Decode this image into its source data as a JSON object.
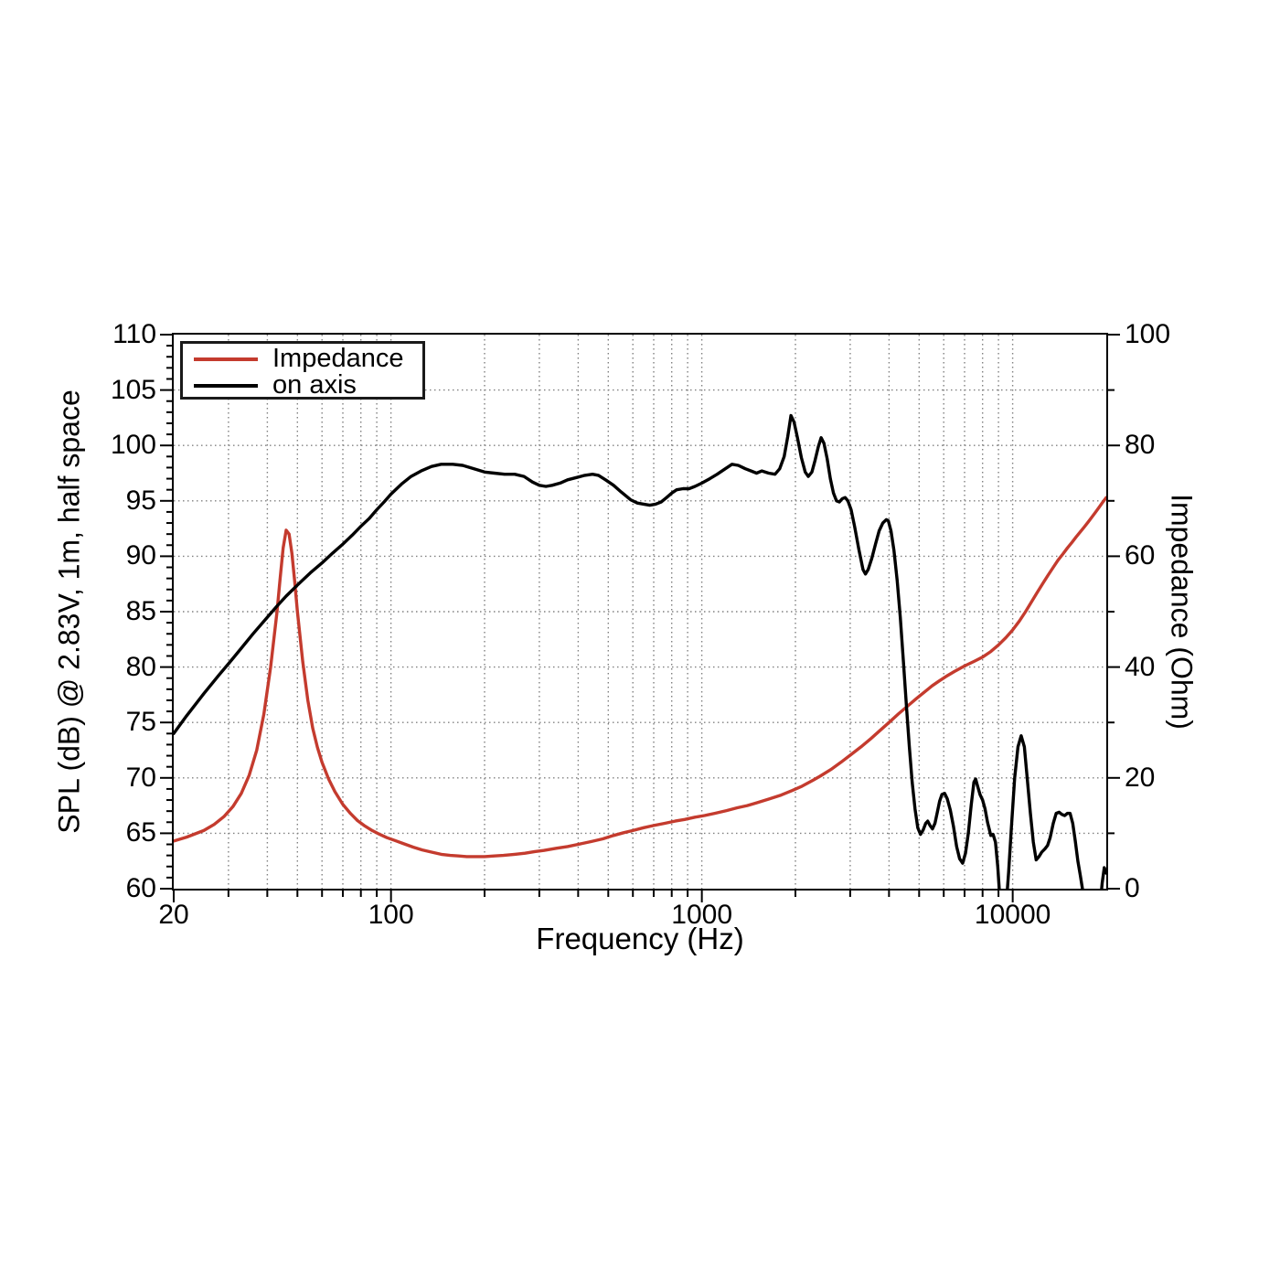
{
  "chart_data": {
    "type": "line",
    "title": "",
    "xlabel": "Frequency (Hz)",
    "ylabel_left": "SPL (dB) @ 2.83V, 1m, half space",
    "ylabel_right": "Impedance (Ohm)",
    "x_scale": "log",
    "x_range": [
      20,
      20000
    ],
    "x_major_ticks": [
      20,
      100,
      1000,
      10000
    ],
    "x_tick_labels": [
      "20",
      "100",
      "1000",
      "10000"
    ],
    "y_left_range": [
      60,
      110
    ],
    "y_left_ticks": [
      60,
      65,
      70,
      75,
      80,
      85,
      90,
      95,
      100,
      105,
      110
    ],
    "y_left_minor_step": 1,
    "y_left_gridlines": [
      65,
      70,
      75,
      80,
      85,
      90,
      95,
      100,
      105
    ],
    "y_right_range": [
      0,
      100
    ],
    "y_right_ticks": [
      0,
      20,
      40,
      60,
      80,
      100
    ],
    "y_right_minor_step": 10,
    "grid_style": "dotted",
    "grid_color": "#808080",
    "axis_color": "#000000",
    "legend": {
      "position": "top-left",
      "entries": [
        {
          "label": "Impedance",
          "color": "#c43b2e"
        },
        {
          "label": "on axis",
          "color": "#000000"
        }
      ]
    },
    "series": [
      {
        "name": "Impedance",
        "axis": "right",
        "unit": "Ohm",
        "color": "#c43b2e",
        "points": [
          [
            20,
            8.6
          ],
          [
            22,
            9.3
          ],
          [
            25,
            10.5
          ],
          [
            27,
            11.6
          ],
          [
            29,
            13.0
          ],
          [
            31,
            14.8
          ],
          [
            33,
            17.2
          ],
          [
            35,
            20.5
          ],
          [
            37,
            25.0
          ],
          [
            39,
            31.5
          ],
          [
            41,
            40.0
          ],
          [
            43,
            50.0
          ],
          [
            44,
            56.0
          ],
          [
            45,
            61.5
          ],
          [
            46,
            64.7
          ],
          [
            47,
            64.0
          ],
          [
            48,
            60.5
          ],
          [
            49,
            55.5
          ],
          [
            50,
            50.0
          ],
          [
            52,
            41.0
          ],
          [
            54,
            34.0
          ],
          [
            56,
            29.0
          ],
          [
            58,
            25.5
          ],
          [
            60,
            22.8
          ],
          [
            63,
            19.8
          ],
          [
            66,
            17.5
          ],
          [
            70,
            15.2
          ],
          [
            74,
            13.6
          ],
          [
            78,
            12.3
          ],
          [
            82,
            11.4
          ],
          [
            87,
            10.5
          ],
          [
            92,
            9.8
          ],
          [
            97,
            9.2
          ],
          [
            103,
            8.7
          ],
          [
            110,
            8.1
          ],
          [
            118,
            7.5
          ],
          [
            126,
            7.0
          ],
          [
            135,
            6.6
          ],
          [
            145,
            6.2
          ],
          [
            155,
            6.0
          ],
          [
            165,
            5.9
          ],
          [
            175,
            5.8
          ],
          [
            185,
            5.8
          ],
          [
            200,
            5.8
          ],
          [
            215,
            5.9
          ],
          [
            230,
            6.0
          ],
          [
            250,
            6.2
          ],
          [
            270,
            6.4
          ],
          [
            290,
            6.7
          ],
          [
            310,
            6.9
          ],
          [
            340,
            7.3
          ],
          [
            370,
            7.6
          ],
          [
            400,
            8.0
          ],
          [
            440,
            8.5
          ],
          [
            480,
            9.0
          ],
          [
            520,
            9.6
          ],
          [
            560,
            10.1
          ],
          [
            600,
            10.5
          ],
          [
            650,
            11.0
          ],
          [
            700,
            11.4
          ],
          [
            760,
            11.8
          ],
          [
            820,
            12.2
          ],
          [
            880,
            12.5
          ],
          [
            950,
            12.9
          ],
          [
            1020,
            13.2
          ],
          [
            1100,
            13.6
          ],
          [
            1200,
            14.1
          ],
          [
            1300,
            14.6
          ],
          [
            1400,
            15.0
          ],
          [
            1500,
            15.5
          ],
          [
            1650,
            16.2
          ],
          [
            1800,
            16.9
          ],
          [
            1950,
            17.7
          ],
          [
            2100,
            18.5
          ],
          [
            2250,
            19.4
          ],
          [
            2400,
            20.3
          ],
          [
            2600,
            21.5
          ],
          [
            2800,
            22.8
          ],
          [
            3000,
            24.1
          ],
          [
            3250,
            25.6
          ],
          [
            3500,
            27.1
          ],
          [
            3750,
            28.6
          ],
          [
            4000,
            30.0
          ],
          [
            4300,
            31.6
          ],
          [
            4600,
            33.0
          ],
          [
            4900,
            34.3
          ],
          [
            5200,
            35.5
          ],
          [
            5500,
            36.6
          ],
          [
            5800,
            37.5
          ],
          [
            6100,
            38.3
          ],
          [
            6500,
            39.2
          ],
          [
            7000,
            40.2
          ],
          [
            7500,
            41.0
          ],
          [
            8000,
            41.8
          ],
          [
            8500,
            42.8
          ],
          [
            9000,
            44.0
          ],
          [
            9500,
            45.3
          ],
          [
            10000,
            46.7
          ],
          [
            10500,
            48.3
          ],
          [
            11000,
            50.0
          ],
          [
            11500,
            51.8
          ],
          [
            12000,
            53.5
          ],
          [
            12500,
            55.1
          ],
          [
            13000,
            56.6
          ],
          [
            13500,
            58.0
          ],
          [
            14000,
            59.3
          ],
          [
            14500,
            60.4
          ],
          [
            15000,
            61.5
          ],
          [
            15500,
            62.5
          ],
          [
            16000,
            63.5
          ],
          [
            16500,
            64.4
          ],
          [
            17000,
            65.3
          ],
          [
            17500,
            66.2
          ],
          [
            18000,
            67.1
          ],
          [
            18500,
            68.0
          ],
          [
            19000,
            68.9
          ],
          [
            19500,
            69.8
          ],
          [
            20000,
            70.6
          ]
        ]
      },
      {
        "name": "on axis",
        "axis": "left",
        "unit": "dB",
        "color": "#000000",
        "points": [
          [
            20,
            74.0
          ],
          [
            22,
            75.6
          ],
          [
            25,
            77.6
          ],
          [
            28,
            79.3
          ],
          [
            30,
            80.3
          ],
          [
            33,
            81.7
          ],
          [
            36,
            83.0
          ],
          [
            40,
            84.5
          ],
          [
            43,
            85.5
          ],
          [
            46,
            86.4
          ],
          [
            50,
            87.4
          ],
          [
            55,
            88.5
          ],
          [
            60,
            89.4
          ],
          [
            65,
            90.3
          ],
          [
            70,
            91.1
          ],
          [
            75,
            91.9
          ],
          [
            80,
            92.7
          ],
          [
            85,
            93.4
          ],
          [
            90,
            94.2
          ],
          [
            95,
            94.9
          ],
          [
            100,
            95.6
          ],
          [
            108,
            96.5
          ],
          [
            116,
            97.2
          ],
          [
            125,
            97.7
          ],
          [
            135,
            98.1
          ],
          [
            145,
            98.3
          ],
          [
            158,
            98.3
          ],
          [
            170,
            98.2
          ],
          [
            185,
            97.9
          ],
          [
            200,
            97.6
          ],
          [
            215,
            97.5
          ],
          [
            232,
            97.4
          ],
          [
            250,
            97.4
          ],
          [
            268,
            97.2
          ],
          [
            285,
            96.7
          ],
          [
            300,
            96.4
          ],
          [
            315,
            96.3
          ],
          [
            330,
            96.4
          ],
          [
            350,
            96.6
          ],
          [
            370,
            96.9
          ],
          [
            395,
            97.1
          ],
          [
            420,
            97.3
          ],
          [
            445,
            97.4
          ],
          [
            465,
            97.3
          ],
          [
            490,
            96.9
          ],
          [
            520,
            96.4
          ],
          [
            550,
            95.8
          ],
          [
            590,
            95.1
          ],
          [
            620,
            94.8
          ],
          [
            650,
            94.7
          ],
          [
            680,
            94.6
          ],
          [
            710,
            94.7
          ],
          [
            740,
            94.9
          ],
          [
            770,
            95.3
          ],
          [
            800,
            95.7
          ],
          [
            830,
            96.0
          ],
          [
            870,
            96.1
          ],
          [
            910,
            96.1
          ],
          [
            950,
            96.3
          ],
          [
            1000,
            96.6
          ],
          [
            1060,
            97.0
          ],
          [
            1120,
            97.4
          ],
          [
            1190,
            97.9
          ],
          [
            1250,
            98.3
          ],
          [
            1310,
            98.2
          ],
          [
            1380,
            97.9
          ],
          [
            1440,
            97.7
          ],
          [
            1500,
            97.5
          ],
          [
            1560,
            97.7
          ],
          [
            1640,
            97.5
          ],
          [
            1720,
            97.4
          ],
          [
            1780,
            97.9
          ],
          [
            1840,
            99.0
          ],
          [
            1890,
            100.8
          ],
          [
            1935,
            102.7
          ],
          [
            1980,
            102.1
          ],
          [
            2030,
            100.7
          ],
          [
            2090,
            98.9
          ],
          [
            2150,
            97.6
          ],
          [
            2200,
            97.2
          ],
          [
            2260,
            97.6
          ],
          [
            2310,
            98.6
          ],
          [
            2370,
            99.9
          ],
          [
            2420,
            100.7
          ],
          [
            2470,
            100.2
          ],
          [
            2530,
            98.8
          ],
          [
            2590,
            97.0
          ],
          [
            2650,
            95.7
          ],
          [
            2710,
            95.0
          ],
          [
            2770,
            94.9
          ],
          [
            2830,
            95.2
          ],
          [
            2890,
            95.3
          ],
          [
            2950,
            95.0
          ],
          [
            3020,
            94.2
          ],
          [
            3100,
            92.7
          ],
          [
            3200,
            90.6
          ],
          [
            3300,
            88.8
          ],
          [
            3360,
            88.4
          ],
          [
            3430,
            88.8
          ],
          [
            3520,
            89.8
          ],
          [
            3620,
            91.1
          ],
          [
            3720,
            92.3
          ],
          [
            3820,
            93.0
          ],
          [
            3920,
            93.3
          ],
          [
            3980,
            93.2
          ],
          [
            4060,
            92.3
          ],
          [
            4150,
            90.5
          ],
          [
            4250,
            87.8
          ],
          [
            4350,
            84.5
          ],
          [
            4450,
            80.5
          ],
          [
            4550,
            76.5
          ],
          [
            4650,
            72.8
          ],
          [
            4750,
            69.6
          ],
          [
            4850,
            67.2
          ],
          [
            4950,
            65.5
          ],
          [
            5050,
            64.9
          ],
          [
            5150,
            65.3
          ],
          [
            5250,
            65.9
          ],
          [
            5330,
            66.1
          ],
          [
            5420,
            65.7
          ],
          [
            5520,
            65.4
          ],
          [
            5620,
            65.9
          ],
          [
            5720,
            66.9
          ],
          [
            5820,
            67.9
          ],
          [
            5920,
            68.5
          ],
          [
            6040,
            68.6
          ],
          [
            6160,
            68.1
          ],
          [
            6300,
            67.1
          ],
          [
            6450,
            65.6
          ],
          [
            6600,
            63.8
          ],
          [
            6750,
            62.7
          ],
          [
            6900,
            62.3
          ],
          [
            7050,
            63.2
          ],
          [
            7200,
            65.0
          ],
          [
            7350,
            67.5
          ],
          [
            7500,
            69.6
          ],
          [
            7600,
            69.9
          ],
          [
            7700,
            69.3
          ],
          [
            7850,
            68.5
          ],
          [
            8000,
            68.0
          ],
          [
            8150,
            67.2
          ],
          [
            8300,
            66.0
          ],
          [
            8500,
            64.8
          ],
          [
            8650,
            64.9
          ],
          [
            8800,
            64.2
          ],
          [
            8950,
            62.0
          ],
          [
            9100,
            59.0
          ],
          [
            9300,
            57.0
          ],
          [
            9500,
            58.0
          ],
          [
            9700,
            61.5
          ],
          [
            9900,
            65.5
          ],
          [
            10150,
            70.0
          ],
          [
            10400,
            72.8
          ],
          [
            10650,
            73.8
          ],
          [
            10900,
            72.8
          ],
          [
            11150,
            69.8
          ],
          [
            11400,
            66.8
          ],
          [
            11650,
            64.2
          ],
          [
            11900,
            62.6
          ],
          [
            12150,
            62.9
          ],
          [
            12400,
            63.3
          ],
          [
            12700,
            63.6
          ],
          [
            12950,
            63.9
          ],
          [
            13200,
            64.6
          ],
          [
            13500,
            65.9
          ],
          [
            13800,
            66.8
          ],
          [
            14100,
            66.9
          ],
          [
            14400,
            66.7
          ],
          [
            14700,
            66.6
          ],
          [
            15000,
            66.8
          ],
          [
            15300,
            66.8
          ],
          [
            15600,
            65.9
          ],
          [
            15900,
            64.3
          ],
          [
            16200,
            62.5
          ],
          [
            16500,
            61.2
          ],
          [
            16800,
            59.8
          ],
          [
            17200,
            57.5
          ],
          [
            17700,
            55.5
          ],
          [
            18200,
            55.0
          ],
          [
            18700,
            56.5
          ],
          [
            19100,
            58.5
          ],
          [
            19400,
            60.5
          ],
          [
            19700,
            61.9
          ],
          [
            20000,
            61.4
          ]
        ]
      }
    ]
  }
}
